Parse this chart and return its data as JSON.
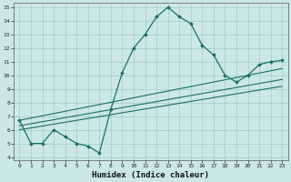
{
  "xlabel": "Humidex (Indice chaleur)",
  "background_color": "#cce8e5",
  "grid_color": "#a8d0cc",
  "line_color": "#1a6e65",
  "xlim": [
    -0.5,
    23.5
  ],
  "ylim": [
    3.8,
    15.3
  ],
  "xticks": [
    0,
    1,
    2,
    3,
    4,
    5,
    6,
    7,
    8,
    9,
    10,
    11,
    12,
    13,
    14,
    15,
    16,
    17,
    18,
    19,
    20,
    21,
    22,
    23
  ],
  "yticks": [
    4,
    5,
    6,
    7,
    8,
    9,
    10,
    11,
    12,
    13,
    14,
    15
  ],
  "main_line": {
    "x": [
      0,
      1,
      2,
      3,
      4,
      5,
      6,
      7,
      8,
      9,
      10,
      11,
      12,
      13,
      14,
      15,
      16,
      17,
      18,
      19,
      20,
      21,
      22,
      23
    ],
    "y": [
      6.7,
      5.0,
      5.0,
      6.0,
      5.5,
      5.0,
      4.8,
      4.3,
      7.5,
      10.2,
      12.0,
      13.0,
      14.3,
      15.0,
      14.3,
      13.8,
      12.2,
      11.5,
      10.0,
      9.5,
      10.0,
      10.8,
      11.0,
      11.1
    ]
  },
  "trend_lines": [
    {
      "x": [
        0,
        23
      ],
      "y": [
        6.7,
        10.5
      ]
    },
    {
      "x": [
        0,
        23
      ],
      "y": [
        6.3,
        9.7
      ]
    },
    {
      "x": [
        0,
        23
      ],
      "y": [
        6.0,
        9.2
      ]
    }
  ]
}
